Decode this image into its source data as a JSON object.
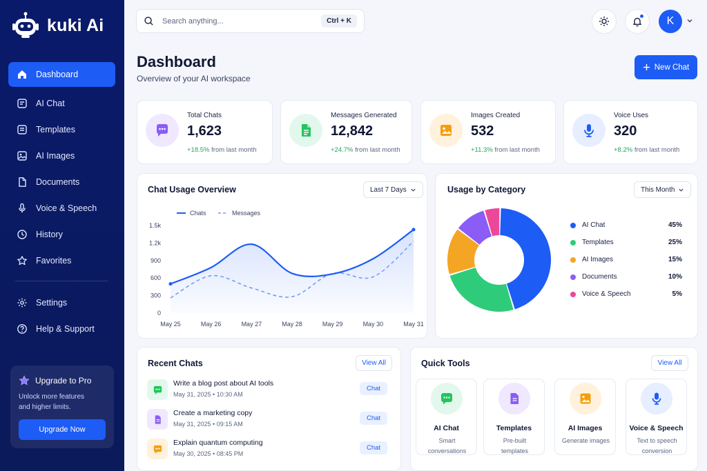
{
  "brand": {
    "name": "kuki Ai"
  },
  "sidebar": {
    "items": [
      {
        "label": "Dashboard",
        "icon": "home-icon",
        "active": true
      },
      {
        "label": "AI Chat",
        "icon": "chat-icon"
      },
      {
        "label": "Templates",
        "icon": "template-icon"
      },
      {
        "label": "AI Images",
        "icon": "image-icon"
      },
      {
        "label": "Documents",
        "icon": "document-icon"
      },
      {
        "label": "Voice & Speech",
        "icon": "microphone-icon"
      },
      {
        "label": "History",
        "icon": "clock-icon"
      },
      {
        "label": "Favorites",
        "icon": "star-icon"
      }
    ],
    "bottom_items": [
      {
        "label": "Settings",
        "icon": "gear-icon"
      },
      {
        "label": "Help & Support",
        "icon": "help-icon"
      }
    ],
    "upgrade": {
      "title": "Upgrade to Pro",
      "description": "Unlock more features and higher limits.",
      "button": "Upgrade Now"
    }
  },
  "topbar": {
    "search_placeholder": "Search anything...",
    "shortcut": "Ctrl + K",
    "avatar_initial": "K"
  },
  "header": {
    "title": "Dashboard",
    "subtitle": "Overview of your AI workspace",
    "new_chat_label": "New Chat"
  },
  "stats": [
    {
      "label": "Total Chats",
      "value": "1,623",
      "delta": "+18.5%",
      "delta_text": " from last month",
      "icon": "chat-bubble-icon",
      "color": "#8b5cf6",
      "bg": "#efe8ff"
    },
    {
      "label": "Messages Generated",
      "value": "12,842",
      "delta": "+24.7%",
      "delta_text": " from last month",
      "icon": "document-icon",
      "color": "#22c55e",
      "bg": "#e3f8ec"
    },
    {
      "label": "Images Created",
      "value": "532",
      "delta": "+11.3%",
      "delta_text": " from last month",
      "icon": "image-icon",
      "color": "#f59e0b",
      "bg": "#fff1dc"
    },
    {
      "label": "Voice Uses",
      "value": "320",
      "delta": "+8.2%",
      "delta_text": " from last month",
      "icon": "microphone-icon",
      "color": "#1d5cf5",
      "bg": "#e6eeff"
    }
  ],
  "usage_overview": {
    "title": "Chat Usage Overview",
    "range": "Last 7 Days"
  },
  "category": {
    "title": "Usage by Category",
    "range": "This Month"
  },
  "chart_data": [
    {
      "type": "line",
      "title": "Chat Usage Overview",
      "x": [
        "May 25",
        "May 26",
        "May 27",
        "May 28",
        "May 29",
        "May 30",
        "May 31"
      ],
      "y_ticks": [
        "0",
        "300",
        "600",
        "900",
        "1.2k",
        "1.5k"
      ],
      "ylim": [
        0,
        1500
      ],
      "grid": false,
      "legend": "top-left",
      "series": [
        {
          "name": "Chats",
          "color": "#1d5cf5",
          "style": "solid",
          "values": [
            500,
            780,
            1180,
            680,
            670,
            930,
            1430
          ]
        },
        {
          "name": "Messages",
          "color": "#6fa0f5",
          "style": "dashed",
          "values": [
            260,
            640,
            430,
            280,
            680,
            620,
            1230
          ]
        }
      ]
    },
    {
      "type": "pie",
      "title": "Usage by Category",
      "legend": "right",
      "categories": [
        "AI Chat",
        "Templates",
        "AI Images",
        "Documents",
        "Voice & Speech"
      ],
      "values": [
        45,
        25,
        15,
        10,
        5
      ],
      "labels": [
        "45%",
        "25%",
        "15%",
        "10%",
        "5%"
      ],
      "colors": [
        "#1d5cf5",
        "#2ecc7a",
        "#f5a524",
        "#8b5cf6",
        "#ec4899"
      ]
    }
  ],
  "recent_chats": {
    "title": "Recent Chats",
    "view_all": "View All",
    "items": [
      {
        "title": "Write a blog post about AI tools",
        "time": "May 31, 2025 • 10:30 AM",
        "badge": "Chat",
        "icon": "chat-bubble-icon",
        "color": "#22c55e",
        "bg": "#e3f8ec"
      },
      {
        "title": "Create a marketing copy",
        "time": "May 31, 2025 • 09:15 AM",
        "badge": "Chat",
        "icon": "document-icon",
        "color": "#8b5cf6",
        "bg": "#efe8ff"
      },
      {
        "title": "Explain quantum computing",
        "time": "May 30, 2025 • 08:45 PM",
        "badge": "Chat",
        "icon": "chat-bubble-icon",
        "color": "#f59e0b",
        "bg": "#fff1dc"
      }
    ]
  },
  "quick_tools": {
    "title": "Quick Tools",
    "view_all": "View All",
    "items": [
      {
        "name": "AI Chat",
        "desc": "Smart conversations",
        "icon": "chat-bubble-icon",
        "color": "#22c55e",
        "bg": "#e3f8ec"
      },
      {
        "name": "Templates",
        "desc": "Pre-built templates",
        "icon": "document-icon",
        "color": "#8b5cf6",
        "bg": "#efe8ff"
      },
      {
        "name": "AI Images",
        "desc": "Generate images",
        "icon": "image-icon",
        "color": "#f59e0b",
        "bg": "#fff1dc"
      },
      {
        "name": "Voice & Speech",
        "desc": "Text to speech conversion",
        "icon": "microphone-icon",
        "color": "#1d5cf5",
        "bg": "#e6eeff"
      }
    ]
  }
}
